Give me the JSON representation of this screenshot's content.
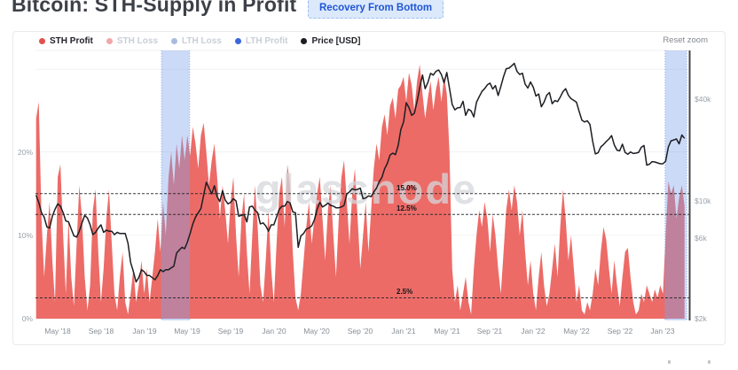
{
  "header": {
    "title": "Bitcoin: STH-Supply in Profit",
    "badge": "Recovery From Bottom"
  },
  "chart": {
    "reset_label": "Reset zoom",
    "watermark": "glassnode",
    "legend": [
      {
        "label": "STH Profit",
        "color": "#e2514c",
        "active": true
      },
      {
        "label": "STH Loss",
        "color": "#f0a8a8",
        "active": false
      },
      {
        "label": "LTH Loss",
        "color": "#a9bce0",
        "active": false
      },
      {
        "label": "LTH Profit",
        "color": "#3b66dd",
        "active": false
      },
      {
        "label": "Price [USD]",
        "color": "#1b1d21",
        "active": true
      }
    ],
    "colors": {
      "sth_profit_fill": "#ec6b67",
      "price_line": "#1c1e22",
      "highlight_band": "rgba(125,162,236,0.40)",
      "highlight_band_border": "rgba(125,162,236,0.85)",
      "gridline": "#eff1f3",
      "annotation_line": "#22252a",
      "right_spine": "#41454b"
    }
  },
  "chart_data": {
    "type": "area",
    "title": "Bitcoin: STH-Supply in Profit",
    "x_start": "2018-03",
    "x_end": "2023-03",
    "points_per_month": 4,
    "x_ticks": [
      {
        "label": "May '18",
        "m": 2
      },
      {
        "label": "Sep '18",
        "m": 6
      },
      {
        "label": "Jan '19",
        "m": 10
      },
      {
        "label": "May '19",
        "m": 14
      },
      {
        "label": "Sep '19",
        "m": 18
      },
      {
        "label": "Jan '20",
        "m": 22
      },
      {
        "label": "May '20",
        "m": 26
      },
      {
        "label": "Sep '20",
        "m": 30
      },
      {
        "label": "Jan '21",
        "m": 34
      },
      {
        "label": "May '21",
        "m": 38
      },
      {
        "label": "Sep '21",
        "m": 42
      },
      {
        "label": "Jan '22",
        "m": 46
      },
      {
        "label": "May '22",
        "m": 50
      },
      {
        "label": "Sep '22",
        "m": 54
      },
      {
        "label": "Jan '23",
        "m": 58
      }
    ],
    "left_axis": {
      "unit": "%",
      "range": [
        0,
        32
      ],
      "ticks": [
        {
          "label": "0%",
          "value": 0
        },
        {
          "label": "10%",
          "value": 10
        },
        {
          "label": "20%",
          "value": 20
        }
      ]
    },
    "right_axis": {
      "unit": "USD",
      "scale": "log",
      "ticks": [
        {
          "label": "$2k",
          "value": 2000
        },
        {
          "label": "$6k",
          "value": 6000
        },
        {
          "label": "$10k",
          "value": 10000
        },
        {
          "label": "$40k",
          "value": 40000
        }
      ]
    },
    "annotations": [
      {
        "label": "15.0%",
        "value": 15.0
      },
      {
        "label": "12.5%",
        "value": 12.5
      },
      {
        "label": "2.5%",
        "value": 2.5
      }
    ],
    "highlight_bands": [
      {
        "start_m": 11.6,
        "end_m": 14.2
      },
      {
        "start_m": 58.2,
        "end_m": 60.2
      }
    ],
    "series": [
      {
        "name": "STH Profit",
        "unit": "%",
        "values": [
          24,
          26,
          12,
          5,
          10,
          14,
          7,
          2,
          17,
          18.5,
          10,
          3,
          12,
          5,
          1.5,
          9,
          16,
          12,
          5,
          1,
          4,
          13,
          15.5,
          8,
          2,
          6,
          12,
          15.5,
          9,
          3,
          1,
          5,
          8,
          2,
          0.5,
          3,
          6,
          2,
          4,
          7,
          3,
          6,
          2,
          5,
          8,
          12,
          8,
          14,
          10,
          17,
          20,
          16,
          21,
          18,
          22,
          19,
          22,
          19.5,
          23,
          21,
          18,
          22,
          23.5,
          20,
          16,
          19,
          21,
          17,
          12,
          16,
          13,
          9,
          14,
          17,
          10,
          5,
          12,
          15,
          8,
          3,
          10,
          16,
          11,
          4,
          2,
          7,
          13,
          6,
          2,
          9,
          15,
          17,
          11,
          18.5,
          16,
          8,
          2.5,
          1,
          3,
          7,
          11,
          14,
          9,
          12,
          15,
          17,
          12,
          7,
          13,
          16,
          10,
          5,
          12,
          17,
          19,
          14,
          9,
          15,
          18,
          12,
          6,
          10,
          14,
          8,
          13,
          18,
          21,
          19,
          23,
          24.5,
          22,
          25.5,
          26.5,
          24,
          27.5,
          28,
          29,
          26,
          29.5,
          28,
          25,
          28.5,
          30.5,
          27,
          24,
          26.5,
          28.5,
          25,
          27.5,
          29,
          26,
          29,
          27,
          20,
          6,
          2,
          4,
          1,
          3,
          5,
          2,
          0.5,
          6,
          10,
          13,
          11,
          14,
          12,
          8,
          12.5,
          10,
          6,
          3,
          8,
          13,
          15.5,
          13,
          16,
          14,
          10,
          13,
          8,
          4,
          7,
          3,
          1,
          5,
          8,
          4,
          1.5,
          3,
          6,
          9,
          5,
          11,
          15.5,
          12,
          7,
          10,
          6,
          2,
          4,
          1,
          0.5,
          2,
          1,
          3,
          6,
          4,
          8,
          11,
          9.5,
          6,
          3,
          7,
          4,
          1.5,
          5,
          8,
          8.5,
          5,
          2,
          0.5,
          1,
          3,
          2,
          4,
          3,
          2,
          3.5,
          2.5,
          4,
          3,
          10,
          16.5,
          15,
          16,
          12,
          14.5,
          16,
          13.5
        ]
      },
      {
        "name": "Price [USD]",
        "unit": "USD",
        "values": [
          10800,
          9800,
          8500,
          8000,
          7000,
          6900,
          8100,
          8900,
          9600,
          9300,
          8500,
          7600,
          7500,
          6800,
          6200,
          6100,
          6600,
          7400,
          8200,
          7900,
          7200,
          6300,
          6500,
          6900,
          7200,
          6500,
          6700,
          6600,
          6600,
          6300,
          6500,
          6400,
          6400,
          6400,
          5600,
          4300,
          3800,
          3300,
          3500,
          3900,
          3800,
          3600,
          3600,
          3500,
          3400,
          3600,
          3900,
          3800,
          3900,
          3900,
          4000,
          4100,
          4900,
          5100,
          5300,
          5200,
          5700,
          6400,
          7300,
          8000,
          8500,
          9000,
          10800,
          12900,
          11900,
          11000,
          12300,
          10600,
          9900,
          11500,
          10100,
          9600,
          9800,
          10300,
          10000,
          8100,
          8200,
          8300,
          7500,
          9200,
          9300,
          8800,
          8500,
          7300,
          7400,
          7100,
          6600,
          7200,
          7200,
          8000,
          8900,
          9300,
          9300,
          9900,
          9700,
          8600,
          8500,
          5300,
          6200,
          6400,
          6800,
          6900,
          7100,
          7700,
          8900,
          9800,
          9200,
          9400,
          9700,
          9400,
          9300,
          9100,
          9100,
          9200,
          9400,
          11000,
          11300,
          11800,
          11600,
          11700,
          11900,
          10300,
          10400,
          10700,
          10600,
          11300,
          11900,
          13000,
          13800,
          15500,
          16700,
          18700,
          19200,
          18800,
          21300,
          26500,
          29400,
          38200,
          35800,
          32200,
          33100,
          38900,
          47000,
          55900,
          46300,
          50400,
          57100,
          55800,
          58800,
          59800,
          56200,
          50100,
          57800,
          46700,
          37300,
          34700,
          35700,
          35800,
          39000,
          32200,
          35000,
          34200,
          31500,
          38500,
          41500,
          44600,
          46300,
          48800,
          50000,
          46100,
          48300,
          42200,
          47700,
          54700,
          60900,
          61300,
          63300,
          65500,
          58600,
          56300,
          57200,
          49300,
          46700,
          50800,
          47300,
          41900,
          43100,
          36200,
          38500,
          42400,
          44000,
          37700,
          39400,
          38800,
          41300,
          44500,
          46300,
          42300,
          40400,
          39500,
          38500,
          34000,
          30100,
          29400,
          29900,
          28400,
          22500,
          19000,
          19300,
          20900,
          21600,
          22500,
          23300,
          24400,
          21500,
          20000,
          19800,
          21700,
          19400,
          18900,
          19500,
          19100,
          19200,
          19400,
          20800,
          21300,
          16300,
          16500,
          17100,
          17000,
          16800,
          16600,
          16600,
          17200,
          20900,
          22700,
          23000,
          23300,
          21800,
          24600,
          23500
        ]
      }
    ]
  }
}
